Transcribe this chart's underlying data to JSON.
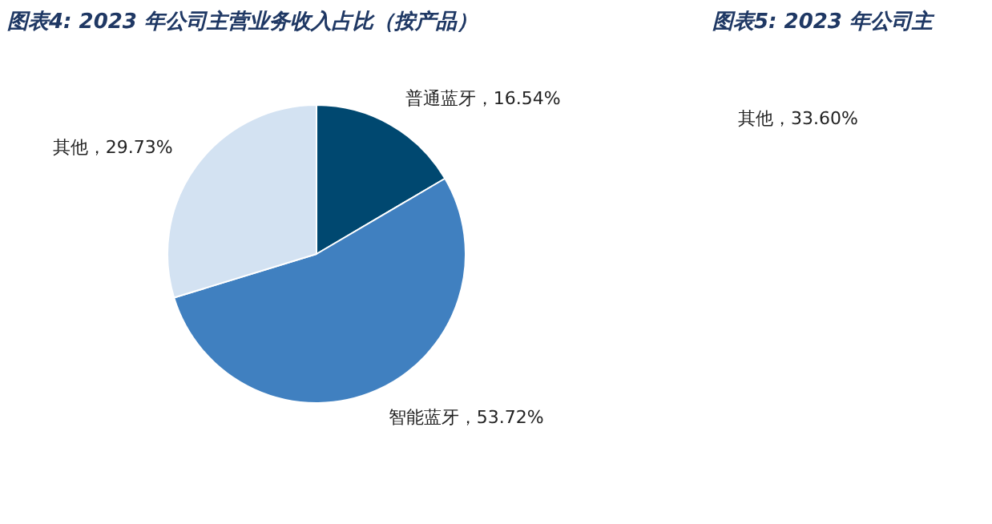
{
  "chart_data": [
    {
      "type": "pie",
      "title": "图表4: 2023 年公司主营业务收入占比（按产品）",
      "categories": [
        "普通蓝牙",
        "智能蓝牙",
        "其他"
      ],
      "values": [
        16.54,
        53.72,
        29.73
      ],
      "value_labels": [
        "16.54%",
        "53.72%",
        "29.73%"
      ],
      "colors": [
        "#004870",
        "#4080c0",
        "#d3e2f2"
      ]
    },
    {
      "type": "other",
      "title": "图表5: 2023 年公司主",
      "annotations": [
        "其他，33.60%"
      ]
    }
  ]
}
